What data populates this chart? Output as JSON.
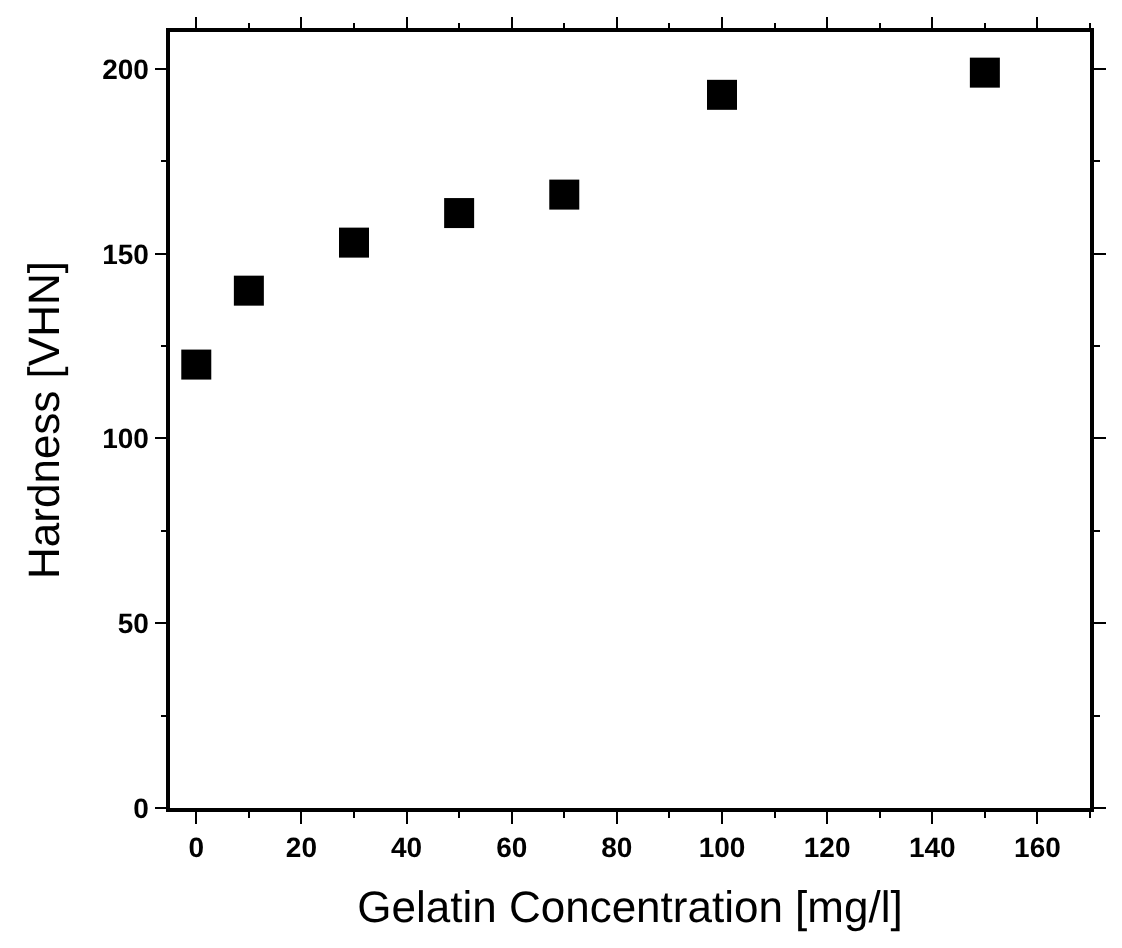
{
  "chart_data": {
    "type": "scatter",
    "xlabel": "Gelatin Concentration [mg/l]",
    "ylabel": "Hardness [VHN]",
    "x": [
      0,
      10,
      30,
      50,
      70,
      100,
      150
    ],
    "series": [
      {
        "color": "#000000",
        "values": [
          120,
          140,
          153,
          161,
          166,
          193,
          199
        ]
      }
    ],
    "xlim": [
      -5,
      170
    ],
    "xticks": [
      0,
      20,
      40,
      60,
      80,
      100,
      120,
      140,
      160
    ],
    "ylim": [
      0,
      210
    ],
    "yticks": [
      0,
      50,
      100,
      150,
      200
    ],
    "marker": "square"
  }
}
